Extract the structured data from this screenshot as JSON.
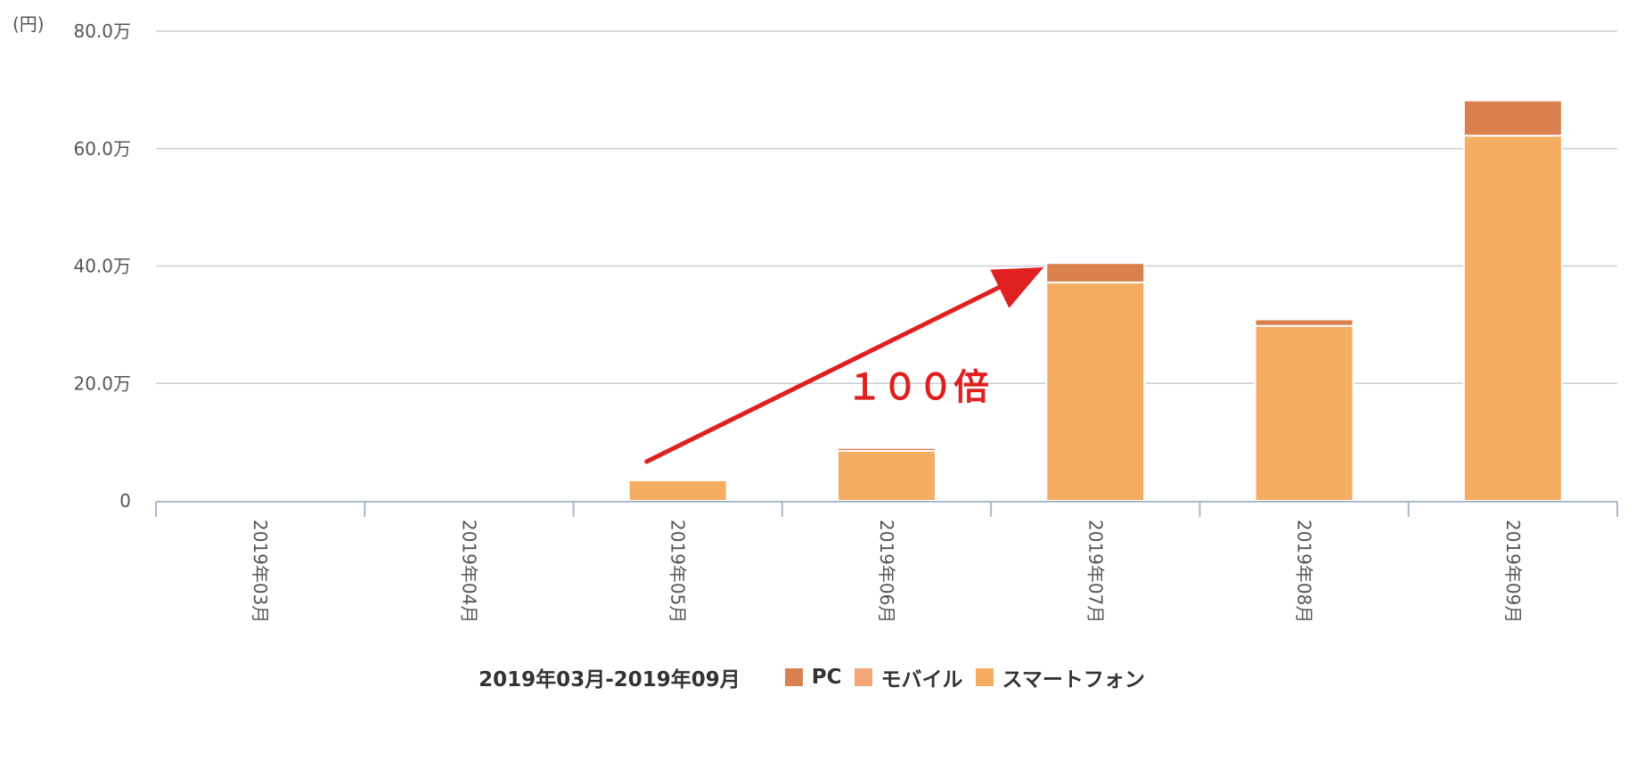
{
  "chart_data": {
    "type": "bar",
    "stacked": true,
    "unit_label": "(円)",
    "ylim": [
      0,
      800000
    ],
    "yticks": [
      "0",
      "20.0万",
      "40.0万",
      "60.0万",
      "80.0万"
    ],
    "categories": [
      "2019年03月",
      "2019年04月",
      "2019年05月",
      "2019年06月",
      "2019年07月",
      "2019年08月",
      "2019年09月"
    ],
    "series": [
      {
        "name": "スマートフォン",
        "color": "#f5ad62",
        "values": [
          0,
          0,
          35000,
          85000,
          372000,
          298000,
          622000
        ]
      },
      {
        "name": "モバイル",
        "color": "#f4a677",
        "values": [
          0,
          0,
          0,
          0,
          0,
          0,
          0
        ]
      },
      {
        "name": "PC",
        "color": "#d9804e",
        "values": [
          0,
          0,
          0,
          5000,
          33000,
          11000,
          60000
        ]
      }
    ],
    "legend_title": "2019年03月-2019年09月",
    "legend_order": [
      "PC",
      "モバイル",
      "スマートフォン"
    ],
    "legend_position": "bottom",
    "grid": true,
    "annotation": {
      "text": "１００倍",
      "color": "#e02020",
      "from_category": "2019年05月",
      "to_category": "2019年07月"
    }
  }
}
